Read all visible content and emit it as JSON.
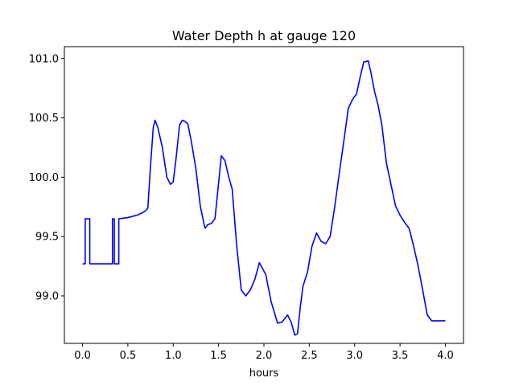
{
  "chart_data": {
    "type": "line",
    "title": "Water Depth h at gauge 120",
    "xlabel": "hours",
    "ylabel": "",
    "xlim": [
      -0.2,
      4.2
    ],
    "ylim": [
      98.6,
      101.1
    ],
    "xticks": [
      0.0,
      0.5,
      1.0,
      1.5,
      2.0,
      2.5,
      3.0,
      3.5,
      4.0
    ],
    "xtick_labels": [
      "0.0",
      "0.5",
      "1.0",
      "1.5",
      "2.0",
      "2.5",
      "3.0",
      "3.5",
      "4.0"
    ],
    "yticks": [
      99.0,
      99.5,
      100.0,
      100.5,
      101.0
    ],
    "ytick_labels": [
      "99.0",
      "99.5",
      "100.0",
      "100.5",
      "101.0"
    ],
    "grid": false,
    "series": [
      {
        "color": "#0000ff",
        "x": [
          0.0,
          0.03,
          0.03,
          0.08,
          0.08,
          0.33,
          0.33,
          0.35,
          0.35,
          0.4,
          0.4,
          0.5,
          0.6,
          0.66,
          0.7,
          0.72,
          0.75,
          0.78,
          0.8,
          0.83,
          0.88,
          0.93,
          0.97,
          1.0,
          1.03,
          1.07,
          1.1,
          1.13,
          1.16,
          1.2,
          1.25,
          1.3,
          1.35,
          1.38,
          1.42,
          1.46,
          1.5,
          1.53,
          1.57,
          1.6,
          1.62,
          1.65,
          1.7,
          1.75,
          1.8,
          1.85,
          1.9,
          1.95,
          2.02,
          2.08,
          2.15,
          2.2,
          2.26,
          2.3,
          2.34,
          2.37,
          2.4,
          2.43,
          2.48,
          2.53,
          2.58,
          2.63,
          2.68,
          2.73,
          2.78,
          2.83,
          2.88,
          2.93,
          2.98,
          3.02,
          3.06,
          3.1,
          3.15,
          3.18,
          3.22,
          3.26,
          3.3,
          3.35,
          3.4,
          3.45,
          3.5,
          3.55,
          3.6,
          3.65,
          3.7,
          3.75,
          3.8,
          3.85,
          3.9,
          3.95,
          4.0
        ],
        "y": [
          99.27,
          99.27,
          99.65,
          99.65,
          99.27,
          99.27,
          99.65,
          99.65,
          99.27,
          99.27,
          99.65,
          99.66,
          99.68,
          99.7,
          99.72,
          99.74,
          100.1,
          100.42,
          100.48,
          100.42,
          100.25,
          100.0,
          99.94,
          99.96,
          100.15,
          100.44,
          100.48,
          100.47,
          100.45,
          100.3,
          100.07,
          99.75,
          99.57,
          99.6,
          99.61,
          99.65,
          99.95,
          100.18,
          100.14,
          100.04,
          99.98,
          99.9,
          99.42,
          99.05,
          99.0,
          99.05,
          99.14,
          99.28,
          99.18,
          98.95,
          98.77,
          98.78,
          98.84,
          98.78,
          98.67,
          98.68,
          98.9,
          99.08,
          99.2,
          99.42,
          99.53,
          99.46,
          99.44,
          99.5,
          99.75,
          100.03,
          100.3,
          100.58,
          100.66,
          100.7,
          100.84,
          100.97,
          100.98,
          100.88,
          100.72,
          100.6,
          100.44,
          100.12,
          99.94,
          99.76,
          99.68,
          99.62,
          99.57,
          99.42,
          99.25,
          99.05,
          98.84,
          98.79,
          98.79,
          98.79,
          98.79
        ]
      }
    ]
  }
}
